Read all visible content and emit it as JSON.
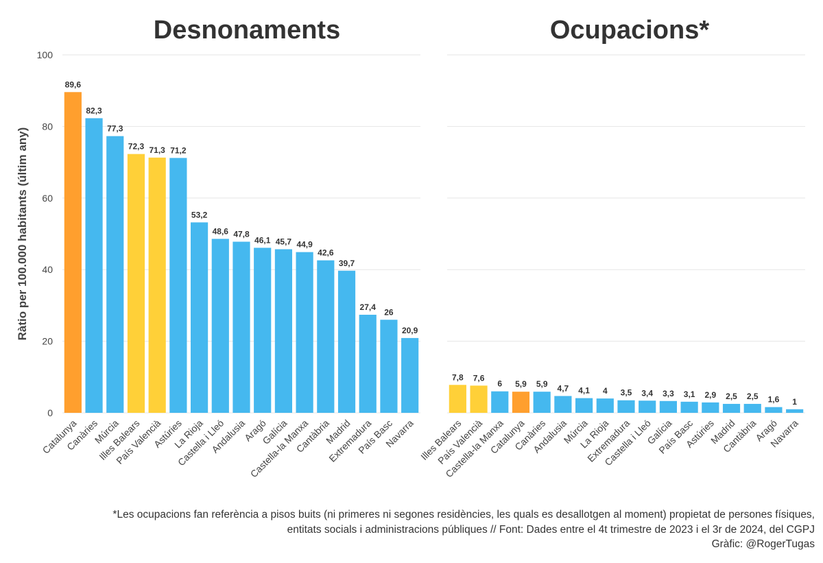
{
  "chart_data": [
    {
      "type": "bar",
      "title": "Desnonaments",
      "ylabel": "Ràtio per 100.000 habitants (últim any)",
      "xlabel": "",
      "ylim": [
        0,
        100
      ],
      "yticks": [
        0,
        20,
        40,
        60,
        80,
        100
      ],
      "grid": true,
      "categories": [
        "Catalunya",
        "Canàries",
        "Múrcia",
        "Illes Balears",
        "País Valencià",
        "Astúries",
        "La Rioja",
        "Castella i Lleó",
        "Andalusia",
        "Aragó",
        "Galícia",
        "Castella-la Manxa",
        "Cantàbria",
        "Madrid",
        "Extremadura",
        "País Basc",
        "Navarra"
      ],
      "values": [
        89.6,
        82.3,
        77.3,
        72.3,
        71.3,
        71.2,
        53.2,
        48.6,
        47.8,
        46.1,
        45.7,
        44.9,
        42.6,
        39.7,
        27.4,
        26,
        20.9
      ],
      "value_labels": [
        "89,6",
        "82,3",
        "77,3",
        "72,3",
        "71,3",
        "71,2",
        "53,2",
        "48,6",
        "47,8",
        "46,1",
        "45,7",
        "44,9",
        "42,6",
        "39,7",
        "27,4",
        "26",
        "20,9"
      ],
      "colors": [
        "#ff9f2e",
        "#45b8ef",
        "#45b8ef",
        "#ffd038",
        "#ffd038",
        "#45b8ef",
        "#45b8ef",
        "#45b8ef",
        "#45b8ef",
        "#45b8ef",
        "#45b8ef",
        "#45b8ef",
        "#45b8ef",
        "#45b8ef",
        "#45b8ef",
        "#45b8ef",
        "#45b8ef"
      ]
    },
    {
      "type": "bar",
      "title": "Ocupacions*",
      "ylabel": "",
      "xlabel": "",
      "ylim": [
        0,
        100
      ],
      "grid": true,
      "categories": [
        "Illes Balears",
        "País Valencià",
        "Castella-la Manxa",
        "Catalunya",
        "Canàries",
        "Andalusia",
        "Múrcia",
        "La Rioja",
        "Extremadura",
        "Castella i Lleó",
        "Galícia",
        "País Basc",
        "Astúries",
        "Madrid",
        "Cantàbria",
        "Aragó",
        "Navarra"
      ],
      "values": [
        7.8,
        7.6,
        6,
        5.9,
        5.9,
        4.7,
        4.1,
        4,
        3.5,
        3.4,
        3.3,
        3.1,
        2.9,
        2.5,
        2.5,
        1.6,
        1
      ],
      "value_labels": [
        "7,8",
        "7,6",
        "6",
        "5,9",
        "5,9",
        "4,7",
        "4,1",
        "4",
        "3,5",
        "3,4",
        "3,3",
        "3,1",
        "2,9",
        "2,5",
        "2,5",
        "1,6",
        "1"
      ],
      "colors": [
        "#ffd038",
        "#ffd038",
        "#45b8ef",
        "#ff9f2e",
        "#45b8ef",
        "#45b8ef",
        "#45b8ef",
        "#45b8ef",
        "#45b8ef",
        "#45b8ef",
        "#45b8ef",
        "#45b8ef",
        "#45b8ef",
        "#45b8ef",
        "#45b8ef",
        "#45b8ef",
        "#45b8ef"
      ]
    }
  ],
  "footnote": {
    "line1": "*Les ocupacions fan referència a pisos buits (ni primeres ni segones residències, les quals es desallotgen al moment) propietat de persones físiques,",
    "line2": "entitats socials i administracions públiques // Font: Dades entre el 4t trimestre de 2023 i el 3r de 2024, del CGPJ",
    "credit": "Gràfic: @RogerTugas"
  }
}
